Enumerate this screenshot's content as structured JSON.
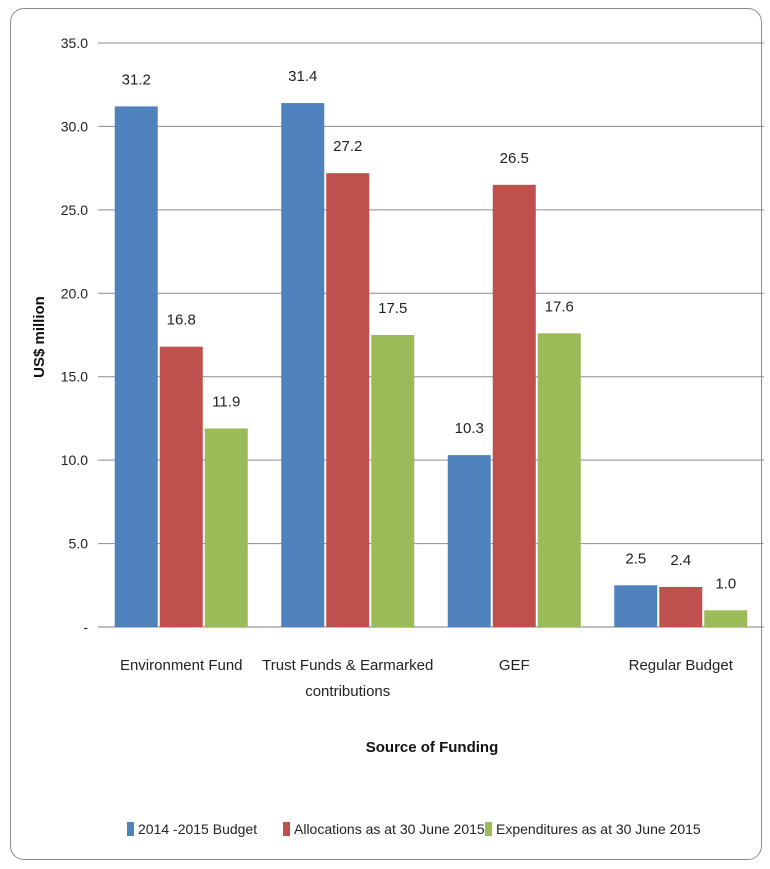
{
  "chart_data": {
    "type": "bar",
    "title": "",
    "xlabel": "Source of Funding",
    "ylabel": "US$ million",
    "ylim": [
      0,
      35
    ],
    "yticks": [
      "-",
      "5.0",
      "10.0",
      "15.0",
      "20.0",
      "25.0",
      "30.0",
      "35.0"
    ],
    "grid": true,
    "legend_position": "bottom",
    "categories": [
      [
        "Environment Fund"
      ],
      [
        "Trust Funds & Earmarked",
        "contributions"
      ],
      [
        "GEF"
      ],
      [
        "Regular Budget"
      ]
    ],
    "series": [
      {
        "name": "2014 -2015 Budget",
        "color": "#4f81bd",
        "values": [
          31.2,
          31.4,
          10.3,
          2.5
        ],
        "labels": [
          "31.2",
          "31.4",
          "10.3",
          "2.5"
        ]
      },
      {
        "name": "Allocations as at 30 June 2015",
        "color": "#c0504d",
        "values": [
          16.8,
          27.2,
          26.5,
          2.4
        ],
        "labels": [
          "16.8",
          "27.2",
          "26.5",
          "2.4"
        ]
      },
      {
        "name": "Expenditures as at 30 June 2015",
        "color": "#9bbb59",
        "values": [
          11.9,
          17.5,
          17.6,
          1.0
        ],
        "labels": [
          "11.9",
          "17.5",
          "17.6",
          "1.0"
        ]
      }
    ]
  }
}
